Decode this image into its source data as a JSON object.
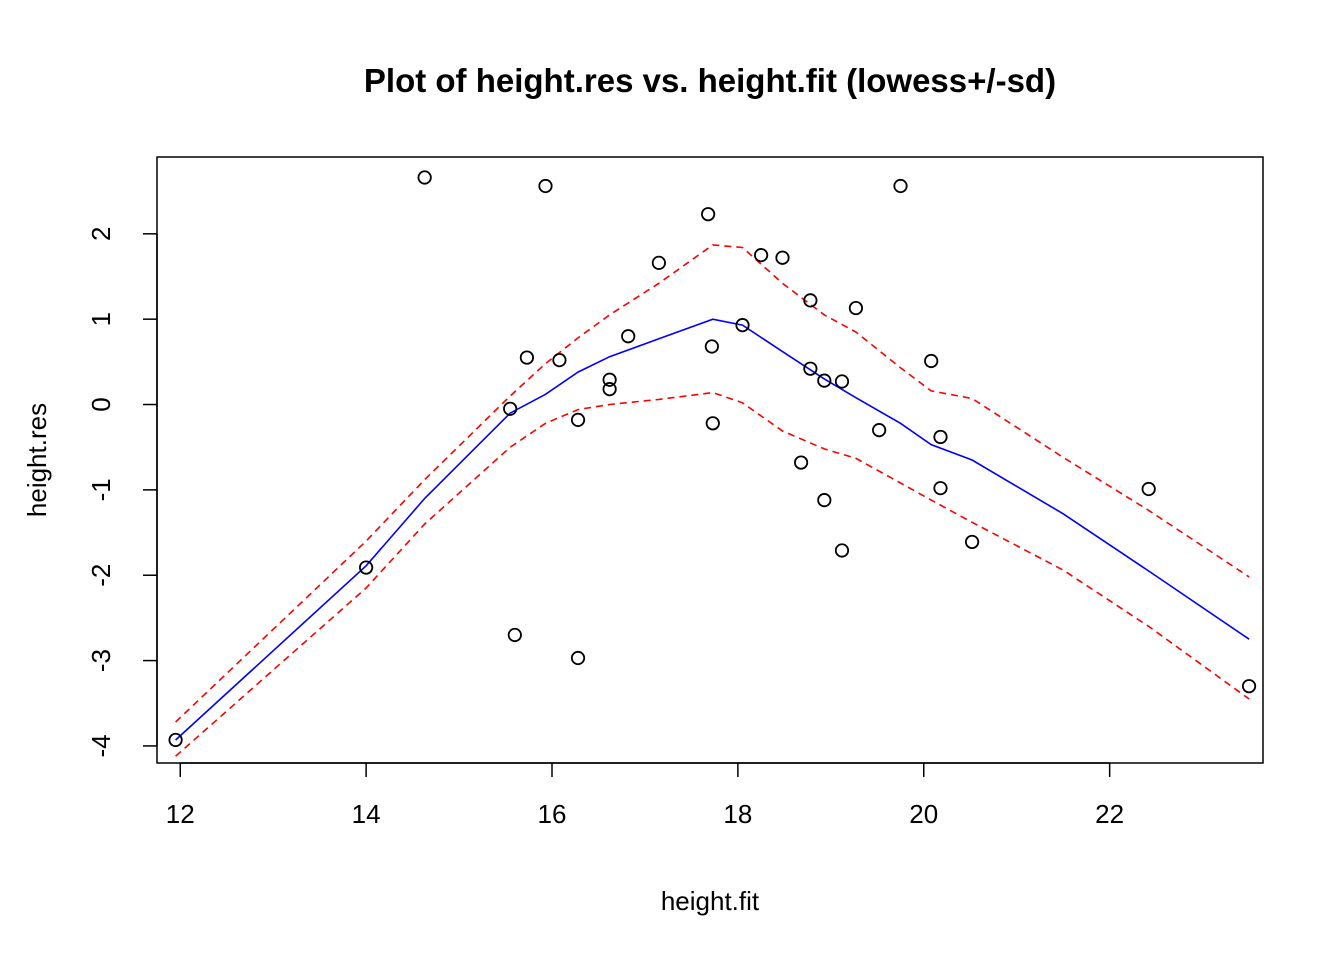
{
  "chart_data": {
    "type": "scatter",
    "title": "Plot of height.res vs. height.fit   (lowess+/-sd)",
    "xlabel": "height.fit",
    "ylabel": "height.res",
    "xlim": [
      11.75,
      23.65
    ],
    "ylim": [
      -4.2,
      2.9
    ],
    "x_ticks": [
      12,
      14,
      16,
      18,
      20,
      22
    ],
    "y_ticks": [
      -4,
      -3,
      -2,
      -1,
      0,
      1,
      2
    ],
    "grid": false,
    "points": [
      {
        "x": 11.95,
        "y": -3.93
      },
      {
        "x": 14.0,
        "y": -1.91
      },
      {
        "x": 14.63,
        "y": 2.66
      },
      {
        "x": 15.55,
        "y": -0.05
      },
      {
        "x": 15.6,
        "y": -2.7
      },
      {
        "x": 15.73,
        "y": 0.55
      },
      {
        "x": 15.93,
        "y": 2.56
      },
      {
        "x": 16.08,
        "y": 0.52
      },
      {
        "x": 16.28,
        "y": -0.18
      },
      {
        "x": 16.28,
        "y": -2.97
      },
      {
        "x": 16.62,
        "y": 0.29
      },
      {
        "x": 16.62,
        "y": 0.18
      },
      {
        "x": 16.82,
        "y": 0.8
      },
      {
        "x": 17.15,
        "y": 1.66
      },
      {
        "x": 17.68,
        "y": 2.23
      },
      {
        "x": 17.72,
        "y": 0.68
      },
      {
        "x": 17.73,
        "y": -0.22
      },
      {
        "x": 18.05,
        "y": 0.93
      },
      {
        "x": 18.25,
        "y": 1.75
      },
      {
        "x": 18.48,
        "y": 1.72
      },
      {
        "x": 18.68,
        "y": -0.68
      },
      {
        "x": 18.78,
        "y": 1.22
      },
      {
        "x": 18.78,
        "y": 0.42
      },
      {
        "x": 18.93,
        "y": 0.28
      },
      {
        "x": 18.93,
        "y": -1.12
      },
      {
        "x": 19.12,
        "y": 0.27
      },
      {
        "x": 19.12,
        "y": -1.71
      },
      {
        "x": 19.27,
        "y": 1.13
      },
      {
        "x": 19.52,
        "y": -0.3
      },
      {
        "x": 19.75,
        "y": 2.56
      },
      {
        "x": 20.08,
        "y": 0.51
      },
      {
        "x": 20.18,
        "y": -0.38
      },
      {
        "x": 20.18,
        "y": -0.98
      },
      {
        "x": 20.52,
        "y": -1.61
      },
      {
        "x": 22.42,
        "y": -0.99
      },
      {
        "x": 23.5,
        "y": -3.3
      }
    ],
    "series": [
      {
        "role": "lowess",
        "color": "#0000ff",
        "dash": "solid",
        "x": [
          11.95,
          14.0,
          14.63,
          15.55,
          15.93,
          16.28,
          16.62,
          17.15,
          17.73,
          18.05,
          18.48,
          18.93,
          19.27,
          19.75,
          20.08,
          20.52,
          21.5,
          22.42,
          23.5
        ],
        "y": [
          -3.93,
          -1.89,
          -1.1,
          -0.1,
          0.12,
          0.38,
          0.56,
          0.77,
          1.0,
          0.93,
          0.62,
          0.3,
          0.08,
          -0.22,
          -0.47,
          -0.65,
          -1.28,
          -1.95,
          -2.75
        ]
      },
      {
        "role": "lowess+sd",
        "color": "#ff0000",
        "dash": "dashed",
        "x": [
          11.95,
          14.0,
          14.63,
          15.55,
          15.93,
          16.28,
          16.62,
          17.15,
          17.73,
          18.05,
          18.48,
          18.93,
          19.27,
          19.75,
          20.08,
          20.52,
          21.5,
          22.42,
          23.5
        ],
        "y": [
          -3.72,
          -1.6,
          -0.88,
          0.1,
          0.48,
          0.78,
          1.05,
          1.42,
          1.87,
          1.84,
          1.42,
          1.05,
          0.85,
          0.43,
          0.16,
          0.07,
          -0.62,
          -1.24,
          -2.02
        ]
      },
      {
        "role": "lowess-sd",
        "color": "#ff0000",
        "dash": "dashed",
        "x": [
          11.95,
          14.0,
          14.63,
          15.55,
          15.93,
          16.28,
          16.62,
          17.15,
          17.73,
          18.05,
          18.48,
          18.93,
          19.27,
          19.75,
          20.08,
          20.52,
          21.5,
          22.42,
          23.5
        ],
        "y": [
          -4.12,
          -2.15,
          -1.4,
          -0.5,
          -0.22,
          -0.06,
          0.0,
          0.06,
          0.14,
          0.02,
          -0.31,
          -0.52,
          -0.63,
          -0.92,
          -1.12,
          -1.38,
          -1.94,
          -2.6,
          -3.45
        ]
      }
    ]
  }
}
